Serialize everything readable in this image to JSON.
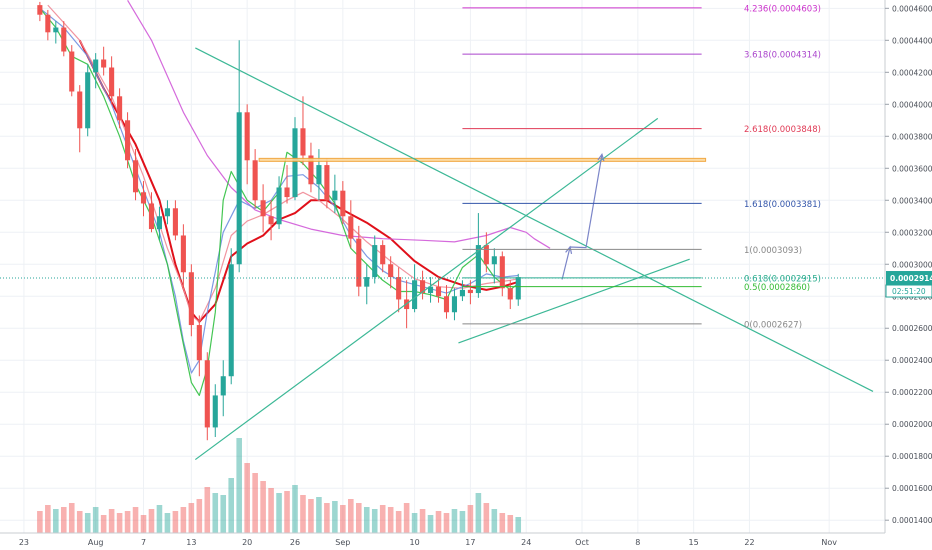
{
  "chart_data": {
    "type": "candlestick",
    "title": "",
    "xlabel": "",
    "ylabel": "",
    "x_ticks": [
      {
        "label": "23",
        "day": 0
      },
      {
        "label": "Aug",
        "day": 9
      },
      {
        "label": "7",
        "day": 15
      },
      {
        "label": "13",
        "day": 21
      },
      {
        "label": "20",
        "day": 28
      },
      {
        "label": "26",
        "day": 34
      },
      {
        "label": "Sep",
        "day": 40
      },
      {
        "label": "10",
        "day": 49
      },
      {
        "label": "17",
        "day": 56
      },
      {
        "label": "24",
        "day": 63
      },
      {
        "label": "Oct",
        "day": 70
      },
      {
        "label": "8",
        "day": 77
      },
      {
        "label": "15",
        "day": 84
      },
      {
        "label": "22",
        "day": 91
      },
      {
        "label": "Nov",
        "day": 101
      }
    ],
    "xlim": [
      -3,
      108
    ],
    "y_ticks": [
      "0.0001400",
      "0.0001600",
      "0.0001800",
      "0.0002000",
      "0.0002200",
      "0.0002400",
      "0.0002600",
      "0.0002800",
      "0.0003000",
      "0.0003200",
      "0.0003400",
      "0.0003600",
      "0.0003800",
      "0.0004000",
      "0.0004200",
      "0.0004400",
      "0.0004600"
    ],
    "ylim": [
      0.000132,
      0.0004652
    ],
    "colors": {
      "up": "#26a69a",
      "down": "#ef5350",
      "ma_red": "#e0101a",
      "ma_magenta": "#d05ad8",
      "ma_pink": "#f08a96",
      "ma_blue": "#6f8fe0",
      "ma_green": "#30c040",
      "trendline": "#3cb896",
      "projection": "#7b85c8",
      "zone_fill": "#fcd79a",
      "zone_stroke": "#f0a030",
      "price_label_bg": "#26a69a",
      "grid": "#eef1f5"
    },
    "fib_levels": [
      {
        "label": "4.236(0.0004603)",
        "price": 0.0004603,
        "color": "#cc33cc"
      },
      {
        "label": "3.618(0.0004314)",
        "price": 0.0004314,
        "color": "#aa44cc"
      },
      {
        "label": "2.618(0.0003848)",
        "price": 0.0003848,
        "color": "#e03a55"
      },
      {
        "label": "1.618(0.0003381)",
        "price": 0.0003381,
        "color": "#3355aa"
      },
      {
        "label": "1(0.0003093)",
        "price": 0.0003093,
        "color": "#888888"
      },
      {
        "label": "0.618(0.0002915)",
        "price": 0.0002915,
        "color": "#2eae8e"
      },
      {
        "label": "0.5(0.0002860)",
        "price": 0.000286,
        "color": "#33bb33"
      },
      {
        "label": "0(0.0002627)",
        "price": 0.0002627,
        "color": "#888888"
      }
    ],
    "fib_x_range": [
      55,
      85
    ],
    "resistance_zone": {
      "x1": 29.5,
      "x2": 85.5,
      "y1": 0.0003645,
      "y2": 0.0003662
    },
    "trendlines": [
      {
        "x1": 21.5,
        "y1": 0.00043525,
        "x2": 106.5,
        "y2": 0.0002205
      },
      {
        "x1": 21.5,
        "y1": 0.0001779,
        "x2": 79.5,
        "y2": 0.0003912
      },
      {
        "x1": 54.5,
        "y1": 0.0002508,
        "x2": 83.5,
        "y2": 0.0003032
      }
    ],
    "projection_path": [
      {
        "x": 67.5,
        "y": 0.0002905
      },
      {
        "x": 68.5,
        "y": 0.0003108
      },
      {
        "x": 70.5,
        "y": 0.0003104
      },
      {
        "x": 72.5,
        "y": 0.0003687
      }
    ],
    "current_price": {
      "label": "0.0002914",
      "timer": "02:51:20",
      "value": 0.0002914
    },
    "candles_ohlc_daily": [
      [
        0.000462,
        0.000464,
        0.000452,
        0.000456
      ],
      [
        0.000456,
        0.000459,
        0.00044,
        0.000445
      ],
      [
        0.000445,
        0.000452,
        0.000438,
        0.000448
      ],
      [
        0.000448,
        0.000452,
        0.00043,
        0.000433
      ],
      [
        0.000433,
        0.000437,
        0.000405,
        0.000408
      ],
      [
        0.000408,
        0.000412,
        0.00037,
        0.000385
      ],
      [
        0.000385,
        0.000425,
        0.00038,
        0.00042
      ],
      [
        0.00042,
        0.000432,
        0.00041,
        0.000428
      ],
      [
        0.000428,
        0.000436,
        0.000418,
        0.000423
      ],
      [
        0.000423,
        0.00043,
        0.0004,
        0.000405
      ],
      [
        0.000405,
        0.00041,
        0.000385,
        0.00039
      ],
      [
        0.00039,
        0.000395,
        0.00036,
        0.000365
      ],
      [
        0.000365,
        0.000372,
        0.00034,
        0.000345
      ],
      [
        0.000345,
        0.000352,
        0.00033,
        0.000338
      ],
      [
        0.000338,
        0.000345,
        0.00032,
        0.000322
      ],
      [
        0.000322,
        0.000336,
        0.000315,
        0.00033
      ],
      [
        0.00033,
        0.00034,
        0.000325,
        0.000335
      ],
      [
        0.000335,
        0.00034,
        0.000315,
        0.000318
      ],
      [
        0.000318,
        0.000325,
        0.000285,
        0.000295
      ],
      [
        0.000295,
        0.0003,
        0.000255,
        0.000262
      ],
      [
        0.000262,
        0.000268,
        0.00023,
        0.00024
      ],
      [
        0.00024,
        0.000245,
        0.00019,
        0.000198
      ],
      [
        0.000198,
        0.000225,
        0.000192,
        0.000218
      ],
      [
        0.000218,
        0.00024,
        0.000205,
        0.00023
      ],
      [
        0.00023,
        0.00031,
        0.000225,
        0.0003
      ],
      [
        0.0003,
        0.00044,
        0.000295,
        0.000395
      ],
      [
        0.000395,
        0.0004,
        0.00035,
        0.000365
      ],
      [
        0.000365,
        0.000372,
        0.000335,
        0.00034
      ],
      [
        0.00034,
        0.00035,
        0.00032,
        0.00033
      ],
      [
        0.00033,
        0.00034,
        0.000315,
        0.000325
      ],
      [
        0.000325,
        0.000355,
        0.000322,
        0.000348
      ],
      [
        0.000348,
        0.000362,
        0.000338,
        0.000342
      ],
      [
        0.000342,
        0.000392,
        0.00034,
        0.000385
      ],
      [
        0.000385,
        0.000405,
        0.000362,
        0.000368
      ],
      [
        0.000368,
        0.000376,
        0.000345,
        0.00035
      ],
      [
        0.00035,
        0.000372,
        0.00034,
        0.000362
      ],
      [
        0.000362,
        0.000366,
        0.000335,
        0.00034
      ],
      [
        0.00034,
        0.000356,
        0.000332,
        0.000346
      ],
      [
        0.000346,
        0.000352,
        0.000325,
        0.00033
      ],
      [
        0.00033,
        0.00034,
        0.00031,
        0.000316
      ],
      [
        0.000316,
        0.000324,
        0.00028,
        0.000286
      ],
      [
        0.000286,
        0.0003,
        0.000275,
        0.000292
      ],
      [
        0.000292,
        0.000318,
        0.000288,
        0.000312
      ],
      [
        0.000312,
        0.000315,
        0.000295,
        0.0003
      ],
      [
        0.0003,
        0.000305,
        0.000285,
        0.000292
      ],
      [
        0.000292,
        0.000298,
        0.00027,
        0.000278
      ],
      [
        0.000278,
        0.00029,
        0.00026,
        0.000272
      ],
      [
        0.000272,
        0.0003,
        0.00027,
        0.00029
      ],
      [
        0.00029,
        0.000296,
        0.000278,
        0.000282
      ],
      [
        0.000282,
        0.000292,
        0.000276,
        0.000286
      ],
      [
        0.000286,
        0.000292,
        0.000276,
        0.00028
      ],
      [
        0.00028,
        0.000287,
        0.000266,
        0.00027
      ],
      [
        0.00027,
        0.000285,
        0.000265,
        0.00028
      ],
      [
        0.00028,
        0.00029,
        0.000277,
        0.000284
      ],
      [
        0.000284,
        0.00029,
        0.000275,
        0.000282
      ],
      [
        0.000282,
        0.000332,
        0.000279,
        0.000312
      ],
      [
        0.000312,
        0.00032,
        0.000295,
        0.0003
      ],
      [
        0.0003,
        0.00031,
        0.000288,
        0.000305
      ],
      [
        0.000305,
        0.000308,
        0.00028,
        0.000285
      ],
      [
        0.000285,
        0.00029,
        0.000272,
        0.000278
      ],
      [
        0.000278,
        0.000294,
        0.000274,
        0.000292
      ]
    ],
    "candles_day_range": [
      2,
      62
    ],
    "moving_averages": [
      {
        "name": "",
        "color": "#e0101a",
        "points": [
          [
            7,
            0.00044
          ],
          [
            10,
            0.00041
          ],
          [
            14,
            0.000375
          ],
          [
            17,
            0.00034
          ],
          [
            19,
            0.0003
          ],
          [
            21,
            0.00027
          ],
          [
            22,
            0.000264
          ],
          [
            24,
            0.000275
          ],
          [
            26,
            0.000305
          ],
          [
            28,
            0.000313
          ],
          [
            30,
            0.000318
          ],
          [
            32,
            0.000328
          ],
          [
            34,
            0.000332
          ],
          [
            35,
            0.000336
          ],
          [
            36,
            0.00034
          ],
          [
            38,
            0.00034
          ],
          [
            40,
            0.000334
          ],
          [
            43,
            0.000326
          ],
          [
            46,
            0.000316
          ],
          [
            49,
            0.000302
          ],
          [
            52,
            0.000292
          ],
          [
            55,
            0.000287
          ],
          [
            58,
            0.000284
          ],
          [
            60,
            0.000286
          ],
          [
            62,
            0.000289
          ]
        ]
      },
      {
        "name": "",
        "color": "#d05ad8",
        "points": [
          [
            13,
            0.000465
          ],
          [
            16,
            0.00044
          ],
          [
            20,
            0.000395
          ],
          [
            23,
            0.000368
          ],
          [
            26,
            0.000348
          ],
          [
            29,
            0.000334
          ],
          [
            32,
            0.000328
          ],
          [
            36,
            0.000322
          ],
          [
            40,
            0.000318
          ],
          [
            45,
            0.000316
          ],
          [
            50,
            0.000315
          ],
          [
            54,
            0.000314
          ],
          [
            58,
            0.000318
          ],
          [
            61,
            0.000323
          ],
          [
            63,
            0.00032
          ],
          [
            64,
            0.000316
          ],
          [
            66,
            0.00031
          ]
        ]
      },
      {
        "name": "",
        "color": "#f08a96",
        "points": [
          [
            3,
            0.000462
          ],
          [
            7,
            0.00044
          ],
          [
            11,
            0.000405
          ],
          [
            15,
            0.000355
          ],
          [
            18,
            0.00031
          ],
          [
            20,
            0.000285
          ],
          [
            21,
            0.000268
          ],
          [
            22,
            0.000264
          ],
          [
            24,
            0.000285
          ],
          [
            26,
            0.000318
          ],
          [
            28,
            0.000327
          ],
          [
            30,
            0.000331
          ],
          [
            33,
            0.00034
          ],
          [
            35,
            0.000345
          ],
          [
            37,
            0.00034
          ],
          [
            40,
            0.000328
          ],
          [
            43,
            0.000314
          ],
          [
            46,
            0.000302
          ],
          [
            49,
            0.000291
          ],
          [
            52,
            0.000286
          ],
          [
            55,
            0.000285
          ],
          [
            58,
            0.000288
          ],
          [
            61,
            0.00029
          ],
          [
            62,
            0.000291
          ]
        ]
      },
      {
        "name": "",
        "color": "#6f8fe0",
        "points": [
          [
            2,
            0.00046
          ],
          [
            5,
            0.000448
          ],
          [
            8,
            0.00043
          ],
          [
            11,
            0.0004
          ],
          [
            14,
            0.00036
          ],
          [
            17,
            0.00032
          ],
          [
            19,
            0.00028
          ],
          [
            20,
            0.000252
          ],
          [
            21,
            0.000232
          ],
          [
            22,
            0.00024
          ],
          [
            23,
            0.00027
          ],
          [
            25,
            0.00032
          ],
          [
            27,
            0.00034
          ],
          [
            29,
            0.000335
          ],
          [
            31,
            0.00034
          ],
          [
            33,
            0.000355
          ],
          [
            35,
            0.000356
          ],
          [
            37,
            0.000348
          ],
          [
            39,
            0.000336
          ],
          [
            41,
            0.000318
          ],
          [
            43,
            0.000305
          ],
          [
            45,
            0.000296
          ],
          [
            47,
            0.00029
          ],
          [
            50,
            0.000286
          ],
          [
            53,
            0.000282
          ],
          [
            56,
            0.000288
          ],
          [
            58,
            0.000294
          ],
          [
            60,
            0.000292
          ],
          [
            62,
            0.000293
          ]
        ]
      },
      {
        "name": "",
        "color": "#30c040",
        "points": [
          [
            2,
            0.00046
          ],
          [
            4,
            0.000448
          ],
          [
            6,
            0.00043
          ],
          [
            8,
            0.000425
          ],
          [
            10,
            0.000405
          ],
          [
            12,
            0.00038
          ],
          [
            14,
            0.00035
          ],
          [
            16,
            0.00033
          ],
          [
            18,
            0.0003
          ],
          [
            19,
            0.000275
          ],
          [
            20,
            0.00025
          ],
          [
            21,
            0.000226
          ],
          [
            22,
            0.000218
          ],
          [
            23,
            0.000235
          ],
          [
            24,
            0.00027
          ],
          [
            25,
            0.00034
          ],
          [
            26,
            0.000358
          ],
          [
            28,
            0.00034
          ],
          [
            30,
            0.000333
          ],
          [
            32,
            0.000345
          ],
          [
            33,
            0.00037
          ],
          [
            35,
            0.000363
          ],
          [
            37,
            0.000352
          ],
          [
            39,
            0.000338
          ],
          [
            41,
            0.00031
          ],
          [
            43,
            0.0003
          ],
          [
            45,
            0.00029
          ],
          [
            47,
            0.000283
          ],
          [
            49,
            0.000283
          ],
          [
            51,
            0.000281
          ],
          [
            53,
            0.000278
          ],
          [
            55,
            0.000298
          ],
          [
            57,
            0.000306
          ],
          [
            59,
            0.000292
          ],
          [
            61,
            0.000284
          ],
          [
            62,
            0.000288
          ]
        ]
      }
    ],
    "volumes_daily": [
      22,
      28,
      24,
      26,
      30,
      22,
      20,
      26,
      18,
      24,
      20,
      22,
      26,
      18,
      24,
      28,
      20,
      22,
      26,
      30,
      34,
      46,
      40,
      38,
      55,
      95,
      70,
      60,
      52,
      45,
      40,
      42,
      48,
      38,
      34,
      36,
      30,
      32,
      28,
      34,
      30,
      26,
      24,
      28,
      26,
      22,
      30,
      20,
      24,
      18,
      22,
      20,
      24,
      22,
      28,
      40,
      30,
      24,
      20,
      18,
      16
    ]
  }
}
